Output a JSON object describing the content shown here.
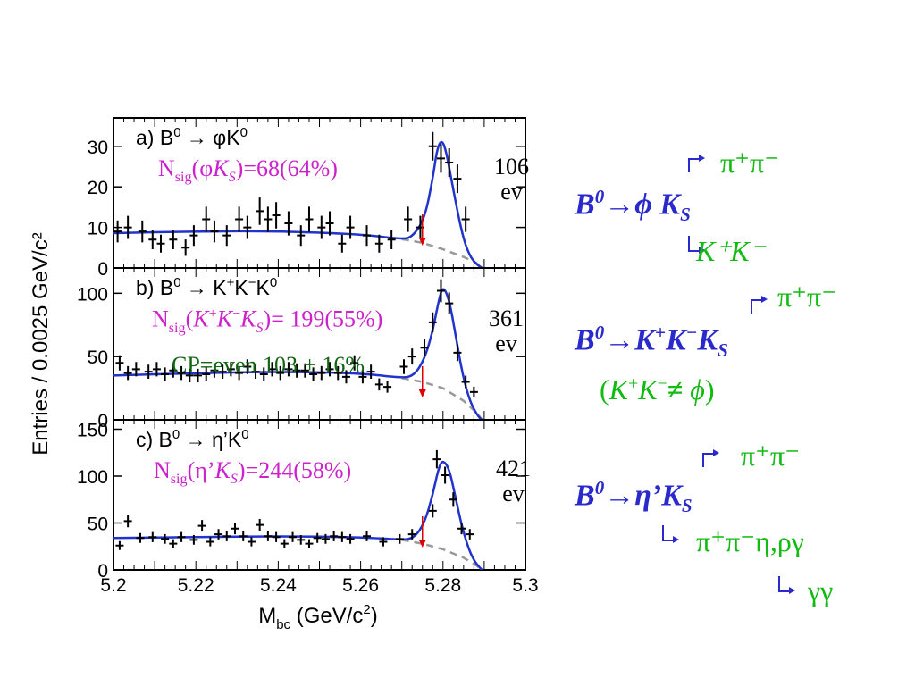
{
  "chart_data": [
    {
      "type": "scatter",
      "title": "a) B⁰ → φK⁰",
      "xlim": [
        5.2,
        5.3
      ],
      "ylim": [
        0,
        37
      ],
      "yticks": [
        0,
        10,
        20,
        30
      ],
      "signal_annotation": "Nsig(φKS)=68(64%)",
      "events_label": "106 ev",
      "points": [
        [
          5.201,
          9
        ],
        [
          5.2035,
          10
        ],
        [
          5.207,
          9
        ],
        [
          5.2095,
          7
        ],
        [
          5.2115,
          6
        ],
        [
          5.2145,
          7
        ],
        [
          5.2175,
          5
        ],
        [
          5.2195,
          8
        ],
        [
          5.2225,
          12
        ],
        [
          5.2245,
          9
        ],
        [
          5.2275,
          8
        ],
        [
          5.2305,
          12
        ],
        [
          5.2325,
          10
        ],
        [
          5.2355,
          14
        ],
        [
          5.2375,
          12
        ],
        [
          5.2395,
          13
        ],
        [
          5.2425,
          11
        ],
        [
          5.2455,
          8
        ],
        [
          5.2475,
          12
        ],
        [
          5.2505,
          10
        ],
        [
          5.2525,
          11
        ],
        [
          5.2555,
          6
        ],
        [
          5.2575,
          10
        ],
        [
          5.2615,
          8
        ],
        [
          5.2645,
          6
        ],
        [
          5.2675,
          7
        ],
        [
          5.2715,
          12
        ],
        [
          5.2745,
          10
        ],
        [
          5.2775,
          30
        ],
        [
          5.2795,
          27
        ],
        [
          5.2815,
          26
        ],
        [
          5.2835,
          22
        ],
        [
          5.2855,
          12
        ]
      ],
      "curve": [
        [
          5.2,
          8.6
        ],
        [
          5.22,
          9.0
        ],
        [
          5.24,
          9.1
        ],
        [
          5.26,
          8.3
        ],
        [
          5.27,
          7.1
        ],
        [
          5.2725,
          7.6
        ],
        [
          5.2755,
          12
        ],
        [
          5.2775,
          22
        ],
        [
          5.2785,
          29
        ],
        [
          5.2795,
          31.5
        ],
        [
          5.2805,
          30
        ],
        [
          5.282,
          22
        ],
        [
          5.2835,
          14
        ],
        [
          5.285,
          7
        ],
        [
          5.2865,
          3
        ],
        [
          5.288,
          1
        ],
        [
          5.2895,
          0
        ]
      ],
      "background_curve": [
        [
          5.27,
          7.1
        ],
        [
          5.275,
          6.2
        ],
        [
          5.28,
          4.6
        ],
        [
          5.285,
          2.7
        ],
        [
          5.288,
          1.3
        ],
        [
          5.2895,
          0
        ]
      ],
      "cut_marker_x": 5.275
    },
    {
      "type": "scatter",
      "title": "b) B⁰ → K⁺K⁻K⁰",
      "xlim": [
        5.2,
        5.3
      ],
      "ylim": [
        0,
        120
      ],
      "yticks": [
        0,
        50,
        100
      ],
      "signal_annotation": "Nsig(K+K−KS)= 199(55%)",
      "cp_annotation": "CP=even 103 ± 16%",
      "events_label": "361 ev",
      "points": [
        [
          5.2015,
          45
        ],
        [
          5.2035,
          37
        ],
        [
          5.2055,
          40
        ],
        [
          5.2085,
          38
        ],
        [
          5.2105,
          40
        ],
        [
          5.2125,
          36
        ],
        [
          5.2145,
          39
        ],
        [
          5.2165,
          37
        ],
        [
          5.2185,
          35
        ],
        [
          5.2205,
          35
        ],
        [
          5.2225,
          36
        ],
        [
          5.2245,
          39
        ],
        [
          5.2265,
          38
        ],
        [
          5.2285,
          40
        ],
        [
          5.2305,
          37
        ],
        [
          5.2325,
          42
        ],
        [
          5.2345,
          38
        ],
        [
          5.2365,
          36
        ],
        [
          5.2385,
          40
        ],
        [
          5.2405,
          37
        ],
        [
          5.2425,
          40
        ],
        [
          5.2445,
          39
        ],
        [
          5.2465,
          39
        ],
        [
          5.2485,
          36
        ],
        [
          5.2505,
          37
        ],
        [
          5.2525,
          40
        ],
        [
          5.2545,
          37
        ],
        [
          5.2565,
          34
        ],
        [
          5.2585,
          45
        ],
        [
          5.2605,
          34
        ],
        [
          5.2625,
          38
        ],
        [
          5.2645,
          28
        ],
        [
          5.2665,
          26
        ],
        [
          5.2705,
          42
        ],
        [
          5.2725,
          50
        ],
        [
          5.2755,
          57
        ],
        [
          5.2775,
          77
        ],
        [
          5.2795,
          102
        ],
        [
          5.2815,
          92
        ],
        [
          5.2835,
          53
        ],
        [
          5.2855,
          30
        ],
        [
          5.2875,
          22
        ]
      ],
      "curve": [
        [
          5.2,
          35
        ],
        [
          5.22,
          37
        ],
        [
          5.24,
          38
        ],
        [
          5.26,
          37
        ],
        [
          5.27,
          33
        ],
        [
          5.273,
          35
        ],
        [
          5.2755,
          48
        ],
        [
          5.2775,
          70
        ],
        [
          5.279,
          95
        ],
        [
          5.28,
          106
        ],
        [
          5.2815,
          95
        ],
        [
          5.283,
          68
        ],
        [
          5.2845,
          40
        ],
        [
          5.286,
          20
        ],
        [
          5.2875,
          8
        ],
        [
          5.289,
          1
        ],
        [
          5.2895,
          0
        ]
      ],
      "background_curve": [
        [
          5.27,
          33
        ],
        [
          5.275,
          30
        ],
        [
          5.28,
          25
        ],
        [
          5.285,
          15
        ],
        [
          5.288,
          6
        ],
        [
          5.2895,
          0
        ]
      ],
      "cut_marker_x": 5.275
    },
    {
      "type": "scatter",
      "title": "c) B⁰ → η′K⁰",
      "xlim": [
        5.2,
        5.3
      ],
      "ylim": [
        0,
        160
      ],
      "yticks": [
        0,
        50,
        100,
        150
      ],
      "xticks": [
        "5.2",
        "5.22",
        "5.24",
        "5.26",
        "5.28",
        "5.3"
      ],
      "xlabel": "Mbc (GeV/c²)",
      "signal_annotation": "Nsig(η’KS)=244(58%)",
      "events_label": "421 ev",
      "points": [
        [
          5.2015,
          26
        ],
        [
          5.2035,
          52
        ],
        [
          5.2065,
          34
        ],
        [
          5.2095,
          35
        ],
        [
          5.2125,
          33
        ],
        [
          5.2145,
          28
        ],
        [
          5.2165,
          35
        ],
        [
          5.2195,
          32
        ],
        [
          5.2215,
          47
        ],
        [
          5.2235,
          30
        ],
        [
          5.2255,
          38
        ],
        [
          5.2275,
          36
        ],
        [
          5.2295,
          44
        ],
        [
          5.2315,
          36
        ],
        [
          5.2335,
          30
        ],
        [
          5.2355,
          48
        ],
        [
          5.2375,
          36
        ],
        [
          5.2395,
          35
        ],
        [
          5.2415,
          28
        ],
        [
          5.2435,
          35
        ],
        [
          5.2455,
          32
        ],
        [
          5.2475,
          28
        ],
        [
          5.2495,
          34
        ],
        [
          5.2515,
          33
        ],
        [
          5.2535,
          36
        ],
        [
          5.2555,
          35
        ],
        [
          5.2575,
          33
        ],
        [
          5.2615,
          36
        ],
        [
          5.2655,
          30
        ],
        [
          5.2695,
          33
        ],
        [
          5.2725,
          38
        ],
        [
          5.2775,
          63
        ],
        [
          5.2785,
          118
        ],
        [
          5.2805,
          101
        ],
        [
          5.2825,
          75
        ],
        [
          5.2845,
          44
        ],
        [
          5.2865,
          38
        ]
      ],
      "curve": [
        [
          5.2,
          34
        ],
        [
          5.22,
          35
        ],
        [
          5.24,
          36
        ],
        [
          5.26,
          35
        ],
        [
          5.27,
          32
        ],
        [
          5.273,
          34
        ],
        [
          5.2755,
          50
        ],
        [
          5.2775,
          80
        ],
        [
          5.279,
          110
        ],
        [
          5.28,
          117
        ],
        [
          5.2815,
          108
        ],
        [
          5.283,
          78
        ],
        [
          5.2845,
          48
        ],
        [
          5.286,
          25
        ],
        [
          5.2875,
          10
        ],
        [
          5.289,
          2
        ],
        [
          5.2895,
          0
        ]
      ],
      "background_curve": [
        [
          5.27,
          32
        ],
        [
          5.275,
          28
        ],
        [
          5.28,
          22
        ],
        [
          5.285,
          13
        ],
        [
          5.288,
          5
        ],
        [
          5.2895,
          0
        ]
      ],
      "cut_marker_x": 5.275
    }
  ],
  "axes": {
    "ylabel": "Entries / 0.0025 GeV/c²",
    "xlabel_main": "M",
    "xlabel_sub": "bc",
    "xlabel_rest": " (GeV/c",
    "xlabel_sup": "2",
    "xlabel_end": ")",
    "xticks": [
      "5.2",
      "5.22",
      "5.24",
      "5.26",
      "5.28",
      "5.3"
    ]
  },
  "panels": {
    "a": {
      "title": "a) B",
      "title_sup": "0",
      "title_rest": " → φK",
      "title_end_sup": "0",
      "nsig_prefix": "N",
      "nsig_sub": "sig",
      "nsig_open": "(φ",
      "nsig_k": "K",
      "nsig_ksub": "S",
      "nsig_close": ")=68(64%)",
      "events_num": "106",
      "events_unit": "ev"
    },
    "b": {
      "title": "b) B",
      "title_sup": "0",
      "title_rest": " → K",
      "title_sup2": "+",
      "title_k2": "K",
      "title_sup3": "−",
      "title_k3": "K",
      "title_end_sup": "0",
      "nsig_prefix": "N",
      "nsig_sub": "sig",
      "nsig_open": "(",
      "nsig_k1": "K",
      "nsig_sup1": "+",
      "nsig_k2": "K",
      "nsig_sup2": "−",
      "nsig_k3": "K",
      "nsig_ksub": "S",
      "nsig_close": ")= 199(55%)",
      "cp_text": "CP=even 103 ± 16%",
      "events_num": "361",
      "events_unit": "ev"
    },
    "c": {
      "title": "c) B",
      "title_sup": "0",
      "title_rest": " → η’K",
      "title_end_sup": "0",
      "nsig_prefix": "N",
      "nsig_sub": "sig",
      "nsig_open": "(η’",
      "nsig_k": "K",
      "nsig_ksub": "S",
      "nsig_close": ")=244(58%)",
      "events_num": "421",
      "events_unit": "ev"
    }
  },
  "decays": {
    "phi": {
      "b": "B",
      "b_sup": "0",
      "arrow": "→",
      "mid": "ϕ",
      "k": " K",
      "k_sub": "S",
      "top": "π⁺π⁻",
      "bottom": "K⁺K⁻"
    },
    "kkk": {
      "b": "B",
      "b_sup": "0",
      "arrow": "→",
      "k1": "K",
      "s1": "+",
      "k2": "K",
      "s2": "−",
      "k3": "K",
      "k_sub": "S",
      "top": "π⁺π⁻",
      "note_open": "(",
      "note_k1": "K",
      "note_s1": "+",
      "note_k2": "K",
      "note_s2": "−",
      "note_ne": "≠ ",
      "note_phi": "ϕ",
      "note_close": ")"
    },
    "etap": {
      "b": "B",
      "b_sup": "0",
      "arrow": "→",
      "eta": "η’",
      "k": "K",
      "k_sub": "S",
      "top": "π⁺π⁻",
      "middle": "π⁺π⁻η,ργ",
      "bottom": "γγ"
    }
  },
  "colors": {
    "fit": "#2233cc",
    "background_fit": "#999999",
    "cut_marker": "#dd0000",
    "signal_text": "#cc22cc",
    "cp_text": "#116611",
    "decay_main": "#2a2acc",
    "decay_products": "#11bb11"
  }
}
